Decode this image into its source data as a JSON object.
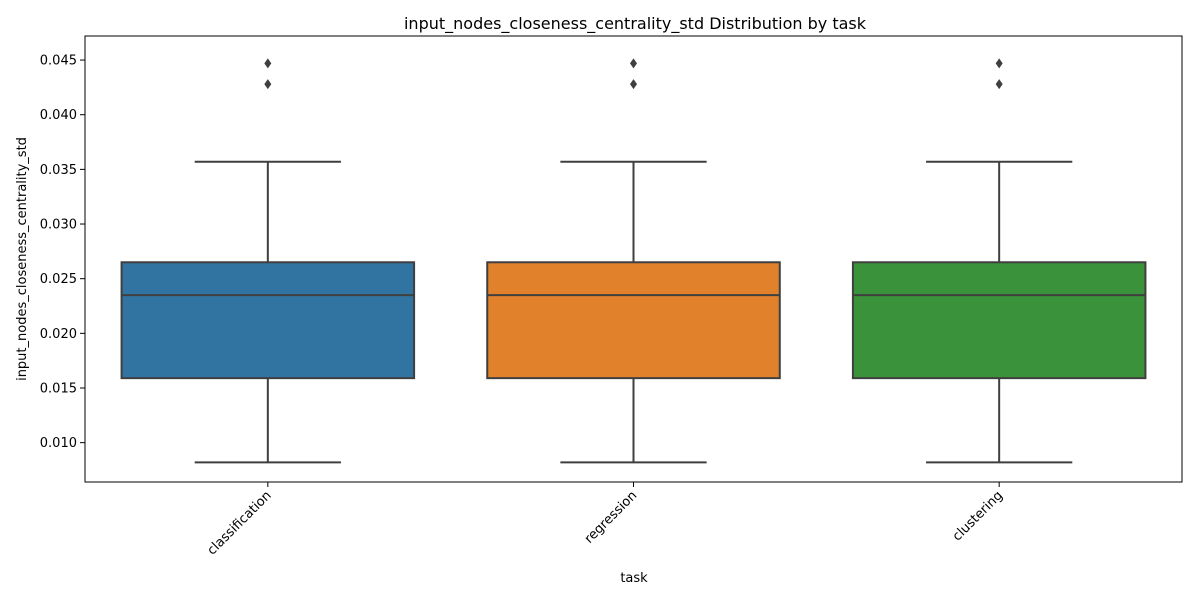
{
  "chart_data": {
    "type": "box",
    "title": "input_nodes_closeness_centrality_std Distribution by task",
    "xlabel": "task",
    "ylabel": "input_nodes_closeness_centrality_std",
    "categories": [
      "classification",
      "regression",
      "clustering"
    ],
    "colors": [
      "#3274a1",
      "#e1812c",
      "#3a923a"
    ],
    "ylim": [
      0.0064,
      0.0472
    ],
    "yticks": [
      0.01,
      0.015,
      0.02,
      0.025,
      0.03,
      0.035,
      0.04,
      0.045
    ],
    "boxes": [
      {
        "category": "classification",
        "whisker_low": 0.0082,
        "q1": 0.0159,
        "median": 0.0235,
        "q3": 0.0265,
        "whisker_high": 0.0357,
        "outliers": [
          0.0428,
          0.0447
        ]
      },
      {
        "category": "regression",
        "whisker_low": 0.0082,
        "q1": 0.0159,
        "median": 0.0235,
        "q3": 0.0265,
        "whisker_high": 0.0357,
        "outliers": [
          0.0428,
          0.0447
        ]
      },
      {
        "category": "clustering",
        "whisker_low": 0.0082,
        "q1": 0.0159,
        "median": 0.0235,
        "q3": 0.0265,
        "whisker_high": 0.0357,
        "outliers": [
          0.0428,
          0.0447
        ]
      }
    ],
    "grid": false,
    "legend": "none"
  }
}
